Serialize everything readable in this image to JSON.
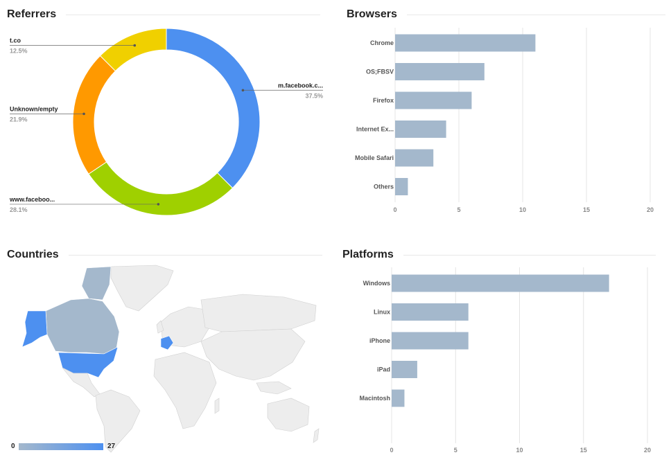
{
  "referrers": {
    "title": "Referrers",
    "chart_data": {
      "type": "pie",
      "title": "Referrers",
      "labels": [
        "m.facebook.c...",
        "www.faceboo...",
        "Unknown/empty",
        "t.co"
      ],
      "values": [
        37.5,
        28.1,
        21.9,
        12.5
      ],
      "percent_labels": [
        "37.5%",
        "28.1%",
        "21.9%",
        "12.5%"
      ],
      "colors": [
        "#4d90f0",
        "#9fd000",
        "#ff9900",
        "#f0d000"
      ],
      "donut": true
    }
  },
  "browsers": {
    "title": "Browsers",
    "chart_data": {
      "type": "bar",
      "orientation": "horizontal",
      "title": "Browsers",
      "categories": [
        "Chrome",
        "OS;FBSV",
        "Firefox",
        "Internet Ex...",
        "Mobile Safari",
        "Others"
      ],
      "values": [
        11,
        7,
        6,
        4,
        3,
        1
      ],
      "xlim": [
        0,
        20
      ],
      "xticks": [
        0,
        5,
        10,
        15,
        20
      ],
      "grid": true,
      "color": "#a4b8cc"
    }
  },
  "countries": {
    "title": "Countries",
    "legend": {
      "min_label": "0",
      "max_label": "27",
      "min_color": "#a4b8cc",
      "max_color": "#4d90f0"
    },
    "chart_data": {
      "type": "map",
      "title": "Countries",
      "color_scale": [
        0,
        27
      ],
      "highlighted_regions": [
        "United States",
        "Canada",
        "France"
      ]
    }
  },
  "platforms": {
    "title": "Platforms",
    "chart_data": {
      "type": "bar",
      "orientation": "horizontal",
      "title": "Platforms",
      "categories": [
        "Windows",
        "Linux",
        "iPhone",
        "iPad",
        "Macintosh"
      ],
      "values": [
        17,
        6,
        6,
        2,
        1
      ],
      "xlim": [
        0,
        20
      ],
      "xticks": [
        0,
        5,
        10,
        15,
        20
      ],
      "grid": true,
      "color": "#a4b8cc"
    }
  }
}
